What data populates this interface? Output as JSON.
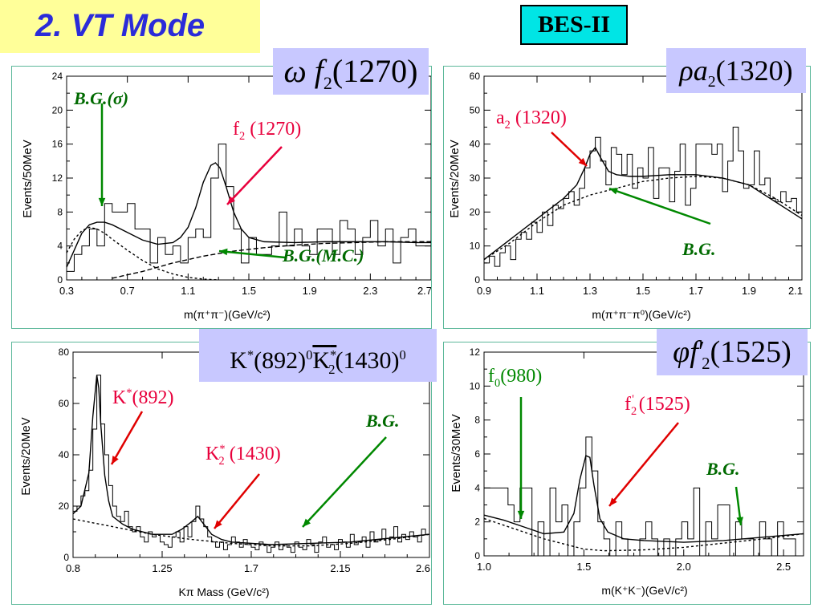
{
  "header": {
    "title": "2. VT Mode",
    "experiment": "BES-II"
  },
  "colors": {
    "title_bg": "#ffff99",
    "title_text": "#2b2bd9",
    "badge_bg": "#00e5e5",
    "channel_bg": "#c8c8ff",
    "bg_green": "#008800",
    "peak_red": "#e8003c",
    "arrow_red": "#e00000"
  },
  "chart_data": [
    {
      "type": "histogram",
      "channel": {
        "symbol": "ω",
        "resonance": "f",
        "sub": "2",
        "mass": "(1270)"
      },
      "xlabel": "m(π⁺π⁻)(GeV/c²)",
      "ylabel": "Events/50MeV",
      "xlim": [
        0.3,
        2.7
      ],
      "ylim": [
        0,
        24
      ],
      "xticks": [
        "0.3",
        "0.7",
        "1.1",
        "1.5",
        "1.9",
        "2.3",
        "2.7"
      ],
      "yticks": [
        "0",
        "4",
        "8",
        "12",
        "16",
        "20",
        "24"
      ],
      "annotations": [
        {
          "text_main": "B.G.(",
          "text_sym": "σ",
          "text_end": ")",
          "kind": "bg"
        },
        {
          "text_main": "f",
          "sub": "2",
          "text_end": " (1270)",
          "kind": "peak"
        },
        {
          "text_main": "B.G.(M.C.)",
          "kind": "bg"
        }
      ],
      "data": {
        "x": [
          0.3,
          0.35,
          0.4,
          0.45,
          0.5,
          0.55,
          0.6,
          0.65,
          0.7,
          0.75,
          0.8,
          0.85,
          0.9,
          0.95,
          1.0,
          1.05,
          1.1,
          1.15,
          1.2,
          1.25,
          1.3,
          1.35,
          1.4,
          1.45,
          1.5,
          1.55,
          1.6,
          1.65,
          1.7,
          1.75,
          1.8,
          1.85,
          1.9,
          1.95,
          2.0,
          2.05,
          2.1,
          2.15,
          2.2,
          2.25,
          2.3,
          2.35,
          2.4,
          2.45,
          2.5,
          2.55,
          2.6,
          2.65
        ],
        "y": [
          1,
          3,
          4,
          6,
          4,
          9,
          8,
          8,
          9,
          6,
          6,
          2,
          5,
          3,
          4,
          2,
          5,
          6,
          5,
          12,
          16,
          11,
          6,
          2,
          5,
          3,
          3,
          4,
          8,
          4,
          6,
          4,
          3,
          6,
          6,
          3,
          7,
          6,
          3,
          5,
          7,
          4,
          6,
          2,
          5,
          6,
          4,
          4
        ]
      },
      "fit": {
        "x": [
          0.3,
          0.35,
          0.4,
          0.45,
          0.5,
          0.55,
          0.6,
          0.7,
          0.8,
          0.9,
          1.0,
          1.05,
          1.1,
          1.15,
          1.2,
          1.25,
          1.28,
          1.31,
          1.35,
          1.4,
          1.45,
          1.5,
          1.6,
          1.8,
          2.0,
          2.2,
          2.4,
          2.6,
          2.7
        ],
        "y": [
          1.5,
          3.5,
          5.5,
          6.5,
          6.8,
          6.8,
          6.5,
          5.6,
          4.7,
          4.2,
          4.4,
          5.0,
          6.2,
          8.5,
          11.5,
          13.5,
          13.8,
          13.2,
          11,
          8,
          6,
          5,
          4.5,
          4.4,
          4.5,
          4.5,
          4.5,
          4.4,
          4.4
        ]
      },
      "bg_sigma": {
        "x": [
          0.3,
          0.35,
          0.4,
          0.45,
          0.5,
          0.55,
          0.6,
          0.7,
          0.8,
          0.9,
          1.0,
          1.1,
          1.2,
          1.3
        ],
        "y": [
          3.2,
          4.8,
          5.8,
          6.2,
          6.0,
          5.5,
          4.8,
          3.5,
          2.3,
          1.3,
          0.7,
          0.3,
          0.1,
          0
        ]
      },
      "bg_mc": {
        "x": [
          0.6,
          0.8,
          1.0,
          1.2,
          1.4,
          1.6,
          1.8,
          2.0,
          2.2,
          2.4,
          2.6,
          2.7
        ],
        "y": [
          0.2,
          1.0,
          2.0,
          2.8,
          3.4,
          3.8,
          4.1,
          4.3,
          4.4,
          4.5,
          4.5,
          4.5
        ]
      }
    },
    {
      "type": "histogram",
      "channel": {
        "symbol": "ρ",
        "resonance": "a",
        "sub": "2",
        "mass": "(1320)"
      },
      "xlabel": "m(π⁺π⁻π⁰)(GeV/c²)",
      "ylabel": "Events/20MeV",
      "xlim": [
        0.9,
        2.1
      ],
      "ylim": [
        0,
        60
      ],
      "xticks": [
        "0.9",
        "1.1",
        "1.3",
        "1.5",
        "1.7",
        "1.9",
        "2.1"
      ],
      "yticks": [
        "0",
        "10",
        "20",
        "30",
        "40",
        "50",
        "60"
      ],
      "annotations": [
        {
          "text_main": "a",
          "sub": "2",
          "text_end": " (1320)",
          "kind": "peak"
        },
        {
          "text_main": "B.G.",
          "kind": "bg"
        }
      ],
      "data": {
        "x": [
          0.9,
          0.92,
          0.94,
          0.96,
          0.98,
          1.0,
          1.02,
          1.04,
          1.06,
          1.08,
          1.1,
          1.12,
          1.14,
          1.16,
          1.18,
          1.2,
          1.22,
          1.24,
          1.26,
          1.28,
          1.3,
          1.32,
          1.34,
          1.36,
          1.38,
          1.4,
          1.42,
          1.44,
          1.46,
          1.48,
          1.5,
          1.52,
          1.54,
          1.56,
          1.58,
          1.6,
          1.62,
          1.64,
          1.66,
          1.68,
          1.7,
          1.72,
          1.74,
          1.76,
          1.78,
          1.8,
          1.82,
          1.84,
          1.86,
          1.88,
          1.9,
          1.92,
          1.94,
          1.96,
          1.98,
          2.0,
          2.02,
          2.04,
          2.06,
          2.08
        ],
        "y": [
          5,
          7,
          4,
          8,
          10,
          6,
          12,
          14,
          12,
          17,
          14,
          20,
          16,
          22,
          21,
          24,
          26,
          22,
          27,
          33,
          38,
          42,
          35,
          28,
          39,
          37,
          31,
          37,
          27,
          33,
          30,
          39,
          24,
          33,
          33,
          23,
          32,
          40,
          22,
          27,
          40,
          40,
          40,
          37,
          40,
          26,
          35,
          45,
          38,
          27,
          28,
          38,
          28,
          30,
          24,
          23,
          26,
          23,
          24,
          20
        ]
      },
      "fit": {
        "x": [
          0.9,
          1.0,
          1.1,
          1.2,
          1.25,
          1.28,
          1.3,
          1.32,
          1.34,
          1.37,
          1.4,
          1.45,
          1.5,
          1.6,
          1.7,
          1.8,
          1.9,
          2.0,
          2.1
        ],
        "y": [
          6,
          12,
          18,
          24,
          28,
          33,
          37,
          39,
          36,
          32,
          31,
          30.5,
          30.5,
          31,
          31,
          30,
          28,
          23,
          18
        ]
      },
      "bg": {
        "x": [
          0.9,
          1.0,
          1.1,
          1.2,
          1.3,
          1.4,
          1.5,
          1.6,
          1.7,
          1.8,
          1.9,
          2.0,
          2.1
        ],
        "y": [
          6,
          11,
          17,
          22,
          25,
          27,
          29,
          30,
          30.5,
          30,
          28,
          24,
          19
        ]
      }
    },
    {
      "type": "histogram",
      "channel": {
        "text_a": "K",
        "sup_a": "*",
        "text_b": "(892)",
        "sup_b": "0",
        "text_c": "K",
        "sup_c": "*",
        "sub_c": "2",
        "text_d": "(1430)",
        "sup_d": "0"
      },
      "xlabel": "Kπ Mass (GeV/c²)",
      "ylabel": "Events/20MeV",
      "xlim": [
        0.8,
        2.6
      ],
      "ylim": [
        0,
        80
      ],
      "xticks": [
        "0.8",
        "1.25",
        "1.7",
        "2.15",
        "2.6"
      ],
      "yticks": [
        "0",
        "20",
        "40",
        "60",
        "80"
      ],
      "annotations": [
        {
          "text_main": "K",
          "sup": "*",
          "text_end": "(892)",
          "kind": "peak"
        },
        {
          "text_main": "K",
          "sup": "*",
          "sub": "2",
          "text_end": " (1430)",
          "kind": "peak"
        },
        {
          "text_main": "B.G.",
          "kind": "bg"
        }
      ],
      "data": {
        "x": [
          0.8,
          0.82,
          0.84,
          0.86,
          0.88,
          0.9,
          0.92,
          0.94,
          0.96,
          0.98,
          1.0,
          1.02,
          1.04,
          1.06,
          1.08,
          1.1,
          1.12,
          1.14,
          1.16,
          1.18,
          1.2,
          1.22,
          1.24,
          1.26,
          1.28,
          1.3,
          1.32,
          1.34,
          1.36,
          1.38,
          1.4,
          1.42,
          1.44,
          1.46,
          1.48,
          1.5,
          1.52,
          1.54,
          1.56,
          1.58,
          1.6,
          1.62,
          1.64,
          1.66,
          1.68,
          1.7,
          1.72,
          1.74,
          1.76,
          1.78,
          1.8,
          1.82,
          1.84,
          1.86,
          1.88,
          1.9,
          1.92,
          1.94,
          1.96,
          1.98,
          2.0,
          2.02,
          2.04,
          2.06,
          2.08,
          2.1,
          2.12,
          2.14,
          2.16,
          2.18,
          2.2,
          2.22,
          2.24,
          2.26,
          2.28,
          2.3,
          2.32,
          2.34,
          2.36,
          2.38,
          2.4,
          2.42,
          2.44,
          2.46,
          2.48,
          2.5,
          2.52,
          2.54,
          2.56,
          2.58
        ],
        "y": [
          18,
          20,
          24,
          26,
          34,
          50,
          71,
          52,
          40,
          28,
          20,
          16,
          14,
          18,
          12,
          10,
          12,
          8,
          6,
          10,
          8,
          9,
          6,
          5,
          4,
          8,
          10,
          6,
          12,
          8,
          14,
          20,
          15,
          12,
          8,
          6,
          4,
          6,
          3,
          5,
          8,
          6,
          4,
          7,
          5,
          4,
          3,
          6,
          5,
          2,
          4,
          6,
          3,
          5,
          4,
          2,
          6,
          4,
          3,
          7,
          5,
          2,
          6,
          8,
          4,
          5,
          3,
          7,
          6,
          4,
          9,
          5,
          6,
          8,
          4,
          10,
          6,
          7,
          11,
          5,
          8,
          12,
          6,
          9,
          7,
          10,
          8,
          6,
          11,
          9
        ]
      },
      "fit": {
        "x": [
          0.8,
          0.84,
          0.88,
          0.9,
          0.92,
          0.93,
          0.94,
          0.96,
          0.98,
          1.0,
          1.05,
          1.1,
          1.2,
          1.3,
          1.35,
          1.4,
          1.43,
          1.46,
          1.5,
          1.55,
          1.6,
          1.8,
          2.0,
          2.2,
          2.4,
          2.6
        ],
        "y": [
          17,
          20,
          33,
          55,
          71,
          66,
          52,
          32,
          22,
          16,
          13,
          11,
          9,
          9,
          11,
          14,
          16,
          13,
          9,
          7,
          6,
          5,
          5.5,
          6,
          7.5,
          9
        ]
      },
      "bg": {
        "x": [
          0.8,
          1.0,
          1.2,
          1.4,
          1.6,
          1.8,
          2.0,
          2.2,
          2.4,
          2.6
        ],
        "y": [
          15,
          12,
          9,
          7,
          5.5,
          4.5,
          4.5,
          5.5,
          7,
          9
        ]
      }
    },
    {
      "type": "histogram",
      "channel": {
        "symbol": "φ",
        "resonance": "f",
        "prime": "′",
        "sub": "2",
        "mass": "(1525)"
      },
      "xlabel": "m(K⁺K⁻)(GeV/c²)",
      "ylabel": "Events/30MeV",
      "xlim": [
        1.0,
        2.6
      ],
      "ylim": [
        0,
        12
      ],
      "xticks": [
        "1.0",
        "1.5",
        "2.0",
        "2.5"
      ],
      "yticks": [
        "0",
        "2",
        "4",
        "6",
        "8",
        "10",
        "12"
      ],
      "annotations": [
        {
          "text_main": "f",
          "sub": "0",
          "text_end": "(980)",
          "kind": "bg"
        },
        {
          "text_main": "f",
          "sub": "2",
          "sup": "'",
          "text_end": " (1525)",
          "kind": "peak"
        },
        {
          "text_main": "B.G.",
          "kind": "bg"
        }
      ],
      "data": {
        "x": [
          1.0,
          1.03,
          1.06,
          1.09,
          1.12,
          1.15,
          1.18,
          1.21,
          1.24,
          1.27,
          1.3,
          1.33,
          1.36,
          1.39,
          1.42,
          1.45,
          1.48,
          1.51,
          1.54,
          1.57,
          1.6,
          1.63,
          1.66,
          1.69,
          1.72,
          1.75,
          1.78,
          1.81,
          1.84,
          1.87,
          1.9,
          1.93,
          1.96,
          1.99,
          2.02,
          2.05,
          2.08,
          2.11,
          2.14,
          2.17,
          2.2,
          2.23,
          2.26,
          2.29,
          2.32,
          2.35,
          2.38,
          2.41,
          2.44,
          2.47,
          2.5,
          2.53,
          2.56
        ],
        "y": [
          4,
          4,
          4,
          4,
          3,
          2,
          4,
          4,
          0,
          2,
          0,
          4,
          2,
          3,
          0,
          2,
          4,
          7,
          5,
          2,
          1,
          0,
          2,
          1,
          0,
          0,
          1,
          2,
          1,
          0,
          1,
          0,
          1,
          2,
          1,
          4,
          0,
          2,
          1,
          3,
          3,
          0,
          2,
          1,
          1,
          0,
          2,
          1,
          0,
          2,
          1,
          1,
          0
        ]
      },
      "fit": {
        "x": [
          1.0,
          1.1,
          1.2,
          1.3,
          1.4,
          1.45,
          1.48,
          1.51,
          1.53,
          1.55,
          1.58,
          1.62,
          1.7,
          1.8,
          2.0,
          2.2,
          2.4,
          2.6
        ],
        "y": [
          2.4,
          2.1,
          1.7,
          1.3,
          1.4,
          2.5,
          4.5,
          5.9,
          5.8,
          4.2,
          2.2,
          1.4,
          1.0,
          0.9,
          0.8,
          0.9,
          1.1,
          1.3
        ]
      },
      "bg": {
        "x": [
          1.0,
          1.1,
          1.2,
          1.3,
          1.4,
          1.5,
          1.6,
          1.8,
          2.0,
          2.2,
          2.4,
          2.6
        ],
        "y": [
          2.2,
          1.8,
          1.4,
          1.0,
          0.7,
          0.4,
          0.3,
          0.35,
          0.5,
          0.75,
          1.0,
          1.3
        ]
      }
    }
  ]
}
